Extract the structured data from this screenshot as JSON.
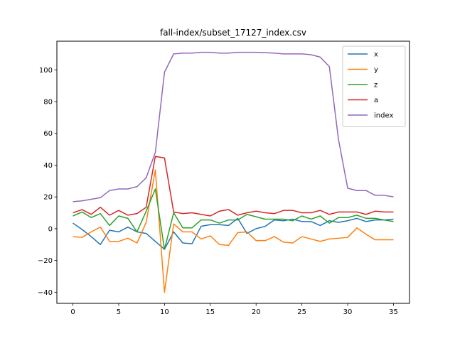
{
  "chart_data": {
    "type": "line",
    "title": "fall-index/subset_17127_index.csv",
    "xlabel": "",
    "ylabel": "",
    "xlim": [
      -1.75,
      36.75
    ],
    "ylim": [
      -47,
      118
    ],
    "xticks": [
      0,
      5,
      10,
      15,
      20,
      25,
      30,
      35
    ],
    "yticks": [
      -40,
      -20,
      0,
      20,
      40,
      60,
      80,
      100
    ],
    "grid": false,
    "legend_position": "top-right",
    "x": [
      0,
      1,
      2,
      3,
      4,
      5,
      6,
      7,
      8,
      9,
      10,
      11,
      12,
      13,
      14,
      15,
      16,
      17,
      18,
      19,
      20,
      21,
      22,
      23,
      24,
      25,
      26,
      27,
      28,
      29,
      30,
      31,
      32,
      33,
      34,
      35
    ],
    "series": [
      {
        "name": "x",
        "color": "#1f77b4",
        "values": [
          3.5,
          -0.5,
          -5,
          -10,
          -1,
          -2,
          1,
          -2,
          -3,
          -8,
          -13,
          -2,
          -9,
          -9.5,
          1.5,
          2.5,
          2.5,
          2,
          6.5,
          -3,
          0,
          1.5,
          5.5,
          5,
          6,
          4.5,
          4.5,
          2,
          5,
          4,
          5,
          6.5,
          4.5,
          5.5,
          5.5,
          6
        ]
      },
      {
        "name": "y",
        "color": "#ff7f0e",
        "values": [
          -5,
          -5.5,
          -2,
          1,
          -8,
          -8,
          -6,
          -9,
          4,
          37,
          -40,
          3,
          -2,
          -2,
          -6.5,
          -4.5,
          -10,
          -10.5,
          -2.5,
          -2,
          -7.5,
          -7.5,
          -5,
          -8.5,
          -9,
          -5,
          -6.5,
          -8,
          -6.5,
          -6,
          -5.5,
          0.5,
          -3.5,
          -7,
          -7,
          -7
        ]
      },
      {
        "name": "z",
        "color": "#2ca02c",
        "values": [
          8,
          10.5,
          7,
          9.5,
          2,
          8,
          6.5,
          -2,
          11,
          25,
          -13,
          10,
          0.5,
          0.5,
          5.5,
          5.5,
          3.5,
          5.5,
          5.5,
          9,
          7.5,
          6,
          6,
          6,
          5,
          8,
          6,
          8,
          3.5,
          7,
          7,
          8.5,
          6.5,
          6.5,
          5.5,
          4.5
        ]
      },
      {
        "name": "a",
        "color": "#d62728",
        "values": [
          10,
          12,
          9,
          13.5,
          8.5,
          11.5,
          8.5,
          9.5,
          13.5,
          45.5,
          44.5,
          10.5,
          9.5,
          10,
          9,
          8,
          11,
          12,
          8.5,
          10,
          11,
          10,
          9.5,
          11.5,
          11.5,
          10,
          10,
          11.5,
          9,
          10.5,
          10.5,
          10.5,
          9,
          11,
          10.5,
          10.5
        ]
      },
      {
        "name": "index",
        "color": "#9467bd",
        "values": [
          17,
          17.5,
          18.5,
          19.5,
          24,
          25,
          25,
          26.5,
          32,
          48,
          98.5,
          110,
          110.5,
          110.5,
          111,
          111,
          110.5,
          110.5,
          111,
          111,
          111,
          110.8,
          110.5,
          110,
          110,
          110,
          109.5,
          108,
          102,
          56,
          25.5,
          24,
          24,
          21,
          21,
          20
        ]
      }
    ]
  }
}
